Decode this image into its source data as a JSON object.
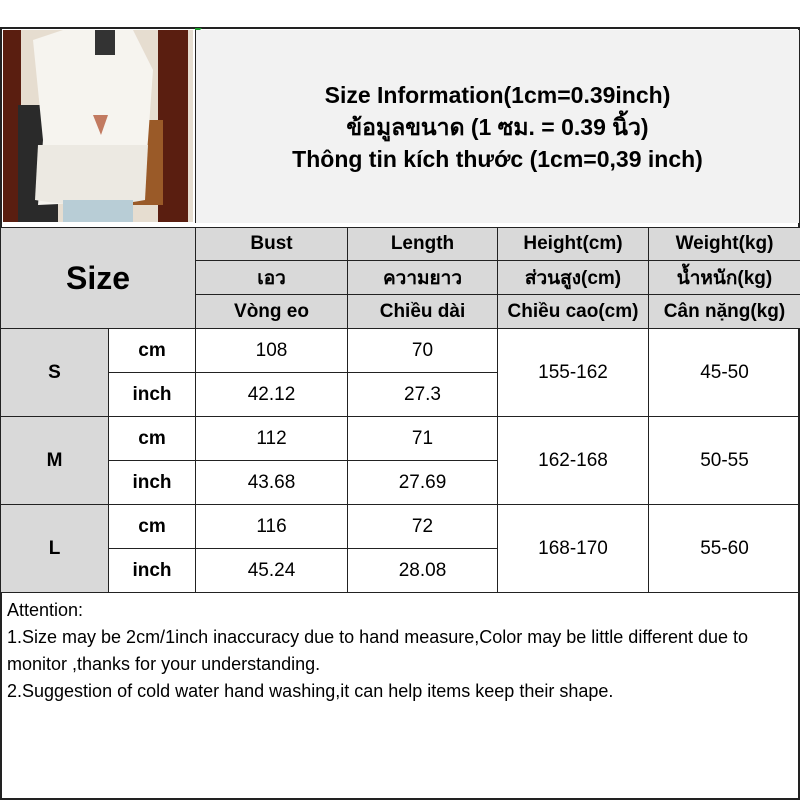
{
  "header": {
    "line1": "Size Information(1cm=0.39inch)",
    "line2": "ข้อมูลขนาด (1 ซม. = 0.39 นิ้ว)",
    "line3": "Thông tin kích thước (1cm=0,39 inch)"
  },
  "table": {
    "size_label": "Size",
    "columns": [
      {
        "en": "Bust",
        "th": "เอว",
        "vi": "Vòng eo"
      },
      {
        "en": "Length",
        "th": "ความยาว",
        "vi": "Chiều dài"
      },
      {
        "en": "Height(cm)",
        "th": "ส่วนสูง(cm)",
        "vi": "Chiều cao(cm)"
      },
      {
        "en": "Weight(kg)",
        "th": "น้ำหนัก(kg)",
        "vi": "Cân nặng(kg)"
      }
    ],
    "rows": [
      {
        "size": "S",
        "unit_cm": "cm",
        "unit_inch": "inch",
        "bust_cm": "108",
        "length_cm": "70",
        "bust_inch": "42.12",
        "length_inch": "27.3",
        "height": "155-162",
        "weight": "45-50"
      },
      {
        "size": "M",
        "unit_cm": "cm",
        "unit_inch": "inch",
        "bust_cm": "112",
        "length_cm": "71",
        "bust_inch": "43.68",
        "length_inch": "27.69",
        "height": "162-168",
        "weight": "50-55"
      },
      {
        "size": "L",
        "unit_cm": "cm",
        "unit_inch": "inch",
        "bust_cm": "116",
        "length_cm": "72",
        "bust_inch": "45.24",
        "length_inch": "28.08",
        "height": "168-170",
        "weight": "55-60"
      }
    ]
  },
  "attention": {
    "title": "Attention:",
    "note1": "1.Size may be 2cm/1inch inaccuracy due to hand measure,Color may be little different due to monitor ,thanks for your understanding.",
    "note2": "2.Suggestion of cold water hand washing,it can help items keep their shape."
  },
  "colors": {
    "header_gray": "#d9d9d9",
    "info_bg": "#f2f2f2"
  }
}
